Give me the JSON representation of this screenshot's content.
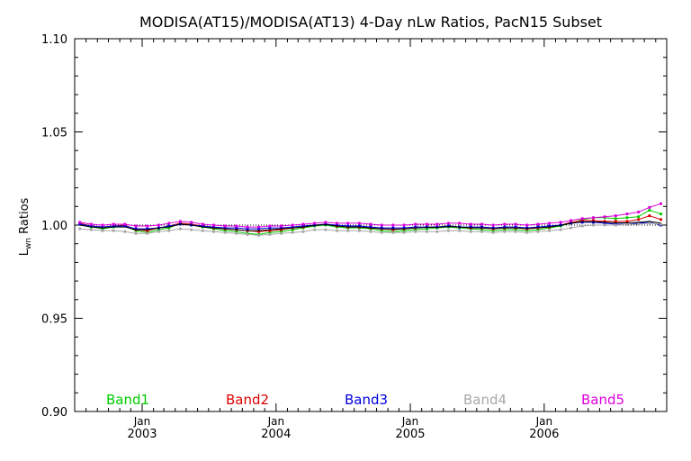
{
  "chart_data": {
    "type": "line",
    "title": "MODISA(AT15)/MODISA(AT13) 4-Day nLw Ratios, PacN15 Subset",
    "ylabel_main": "L",
    "ylabel_sub": "wn",
    "ylabel_tail": " Ratios",
    "ylim": [
      0.9,
      1.1
    ],
    "yticks": [
      "0.90",
      "0.95",
      "1.00",
      "1.05",
      "1.10"
    ],
    "ytick_values": [
      0.9,
      0.95,
      1.0,
      1.05,
      1.1
    ],
    "xlim": [
      "2002-07-01",
      "2006-12-01"
    ],
    "xticks": [
      {
        "month": "Jan",
        "year": "2003",
        "date": "2003-01-01"
      },
      {
        "month": "Jan",
        "year": "2004",
        "date": "2004-01-01"
      },
      {
        "month": "Jan",
        "year": "2005",
        "date": "2005-01-01"
      },
      {
        "month": "Jan",
        "year": "2006",
        "date": "2006-01-01"
      }
    ],
    "reference_line": 1.0,
    "legend_placement": "bottom",
    "grid": false,
    "x": [
      "2002-07-15",
      "2002-08-15",
      "2002-09-15",
      "2002-10-15",
      "2002-11-15",
      "2002-12-15",
      "2003-01-15",
      "2003-02-15",
      "2003-03-15",
      "2003-04-15",
      "2003-05-15",
      "2003-06-15",
      "2003-07-15",
      "2003-08-15",
      "2003-09-15",
      "2003-10-15",
      "2003-11-15",
      "2003-12-15",
      "2004-01-15",
      "2004-02-15",
      "2004-03-15",
      "2004-04-15",
      "2004-05-15",
      "2004-06-15",
      "2004-07-15",
      "2004-08-15",
      "2004-09-15",
      "2004-10-15",
      "2004-11-15",
      "2004-12-15",
      "2005-01-15",
      "2005-02-15",
      "2005-03-15",
      "2005-04-15",
      "2005-05-15",
      "2005-06-15",
      "2005-07-15",
      "2005-08-15",
      "2005-09-15",
      "2005-10-15",
      "2005-11-15",
      "2005-12-15",
      "2006-01-15",
      "2006-02-15",
      "2006-03-15",
      "2006-04-15",
      "2006-05-15",
      "2006-06-15",
      "2006-07-15",
      "2006-08-15",
      "2006-09-15",
      "2006-10-15",
      "2006-11-15"
    ],
    "series": [
      {
        "name": "Band1",
        "color": "#00cc00",
        "values": [
          1.0005,
          0.999,
          0.998,
          0.999,
          0.9995,
          0.997,
          0.996,
          0.9975,
          0.9985,
          1.001,
          1.0005,
          0.999,
          0.998,
          0.997,
          0.9965,
          0.9955,
          0.995,
          0.996,
          0.9965,
          0.9975,
          0.9985,
          0.9995,
          1.0,
          0.999,
          0.9985,
          0.9985,
          0.998,
          0.997,
          0.9965,
          0.997,
          0.9975,
          0.998,
          0.9985,
          0.999,
          0.9985,
          0.998,
          0.9975,
          0.997,
          0.9975,
          0.9975,
          0.997,
          0.9975,
          0.9985,
          0.9995,
          1.001,
          1.003,
          1.004,
          1.004,
          1.0035,
          1.004,
          1.0045,
          1.008,
          1.006
        ]
      },
      {
        "name": "Band2",
        "color": "#dd0000",
        "values": [
          1.001,
          0.9995,
          0.999,
          0.9995,
          1.0,
          0.9975,
          0.997,
          0.9985,
          0.9995,
          1.001,
          1.0005,
          0.9995,
          0.9985,
          0.998,
          0.9975,
          0.997,
          0.9965,
          0.997,
          0.9975,
          0.9985,
          0.999,
          1.0,
          1.0005,
          0.9995,
          0.999,
          0.999,
          0.9985,
          0.998,
          0.9975,
          0.998,
          0.9985,
          0.999,
          0.999,
          0.9995,
          0.999,
          0.9985,
          0.9985,
          0.998,
          0.9985,
          0.9985,
          0.998,
          0.9985,
          0.999,
          1.0,
          1.0015,
          1.0025,
          1.0025,
          1.002,
          1.002,
          1.002,
          1.003,
          1.005,
          1.003
        ]
      },
      {
        "name": "Band3",
        "color": "#0000dd",
        "values": [
          1.0005,
          0.9995,
          0.999,
          0.9995,
          0.9995,
          0.998,
          0.998,
          0.9985,
          0.9995,
          1.0005,
          1.0,
          0.9995,
          0.999,
          0.9985,
          0.9985,
          0.998,
          0.998,
          0.9985,
          0.9985,
          0.999,
          0.9995,
          1.0,
          1.0005,
          1.0,
          0.9995,
          0.9995,
          0.999,
          0.9985,
          0.9985,
          0.9985,
          0.999,
          0.999,
          0.999,
          0.9995,
          0.999,
          0.999,
          0.999,
          0.9985,
          0.999,
          0.999,
          0.9985,
          0.999,
          0.9995,
          1.0,
          1.001,
          1.0015,
          1.0015,
          1.001,
          1.0005,
          1.0005,
          1.001,
          1.0015,
          1.0
        ]
      },
      {
        "name": "Band4",
        "color": "#a8a8a8",
        "values": [
          0.998,
          0.9975,
          0.997,
          0.997,
          0.9965,
          0.9955,
          0.9955,
          0.9965,
          0.997,
          0.998,
          0.9975,
          0.997,
          0.9965,
          0.996,
          0.9955,
          0.995,
          0.9945,
          0.995,
          0.9955,
          0.996,
          0.9965,
          0.9975,
          0.9975,
          0.997,
          0.997,
          0.997,
          0.9965,
          0.996,
          0.996,
          0.996,
          0.9965,
          0.9965,
          0.9965,
          0.997,
          0.997,
          0.9965,
          0.9965,
          0.996,
          0.9965,
          0.9965,
          0.996,
          0.9965,
          0.997,
          0.9975,
          0.9985,
          0.9995,
          1.0,
          1.0,
          1.0,
          1.0005,
          1.0005,
          1.001,
          1.0005
        ]
      },
      {
        "name": "Band5",
        "color": "#dd00dd",
        "values": [
          1.0015,
          1.0005,
          1.0,
          1.0005,
          1.0005,
          0.9995,
          0.9995,
          1.0,
          1.001,
          1.002,
          1.0015,
          1.0005,
          1.0,
          0.9995,
          0.9995,
          0.999,
          0.999,
          0.9995,
          0.9995,
          1.0,
          1.0005,
          1.001,
          1.0015,
          1.001,
          1.001,
          1.001,
          1.0005,
          1.0,
          1.0,
          1.0,
          1.0005,
          1.0005,
          1.0005,
          1.001,
          1.001,
          1.0005,
          1.0005,
          1.0,
          1.0005,
          1.0005,
          1.0,
          1.0005,
          1.001,
          1.0015,
          1.0025,
          1.0035,
          1.004,
          1.0045,
          1.005,
          1.006,
          1.007,
          1.0095,
          1.0115
        ]
      },
      {
        "name": "",
        "color": "#000000",
        "values": [
          1.0,
          0.999,
          0.9985,
          0.999,
          0.999,
          0.9975,
          0.9975,
          0.9985,
          0.999,
          1.0005,
          1.0,
          0.999,
          0.9985,
          0.998,
          0.9975,
          0.997,
          0.997,
          0.9975,
          0.998,
          0.9985,
          0.999,
          0.9998,
          1.0003,
          0.9995,
          0.999,
          0.999,
          0.9985,
          0.998,
          0.9978,
          0.998,
          0.9985,
          0.9988,
          0.9988,
          0.9992,
          0.999,
          0.9986,
          0.9985,
          0.9982,
          0.9985,
          0.9985,
          0.9982,
          0.9986,
          0.999,
          0.9998,
          1.001,
          1.0018,
          1.0018,
          1.0015,
          1.0012,
          1.0012,
          1.0015,
          1.002,
          1.001
        ]
      }
    ]
  }
}
